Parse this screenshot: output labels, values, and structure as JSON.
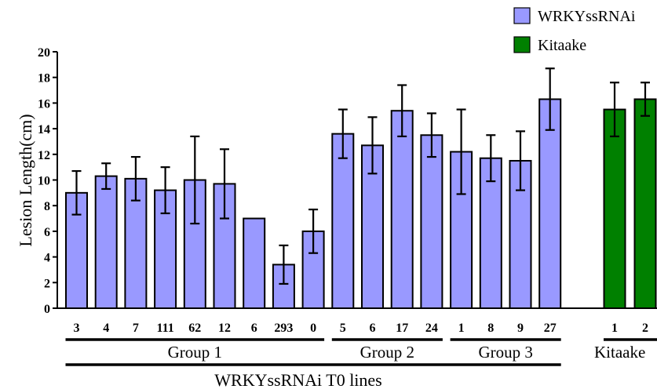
{
  "chart_data": {
    "type": "bar",
    "ylabel": "Lesion Length(cm)",
    "xlabel": "WRKYssRNAi T0 lines",
    "ylim": [
      0,
      20
    ],
    "yticks": [
      0,
      2,
      4,
      6,
      8,
      10,
      12,
      14,
      16,
      18,
      20
    ],
    "legend_position": "top-right",
    "series": [
      {
        "name": "WRKYssRNAi",
        "color": "#9999ff",
        "categories": [
          "3",
          "4",
          "7",
          "111",
          "62",
          "12",
          "6",
          "293",
          "0",
          "5",
          "6",
          "17",
          "24",
          "1",
          "8",
          "9",
          "27"
        ],
        "values": [
          9.0,
          10.3,
          10.1,
          9.2,
          10.0,
          9.7,
          7.0,
          3.4,
          6.0,
          13.6,
          12.7,
          15.4,
          13.5,
          12.2,
          11.7,
          11.5,
          16.3
        ],
        "errors": [
          1.7,
          1.0,
          1.7,
          1.8,
          3.4,
          2.7,
          0,
          1.5,
          1.7,
          1.9,
          2.2,
          2.0,
          1.7,
          3.3,
          1.8,
          2.3,
          2.4
        ]
      },
      {
        "name": "Kitaake",
        "color": "#008000",
        "categories": [
          "1",
          "2"
        ],
        "values": [
          15.5,
          16.3
        ],
        "errors": [
          2.1,
          1.3
        ]
      }
    ],
    "groups": [
      {
        "label": "Group 1",
        "from": 0,
        "to": 8
      },
      {
        "label": "Group 2",
        "from": 9,
        "to": 12
      },
      {
        "label": "Group 3",
        "from": 13,
        "to": 16
      }
    ],
    "kitaake_label": "Kitaake"
  }
}
